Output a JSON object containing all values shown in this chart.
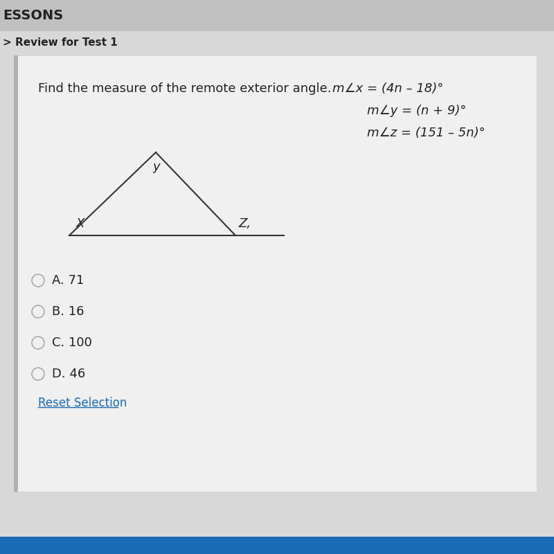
{
  "bg_color": "#d8d8d8",
  "panel_color": "#e8e8e8",
  "header_bg": "#c8c8c8",
  "header_text": "ESSONS",
  "breadcrumb": "> Review for Test 1",
  "question_text": "Find the measure of the remote exterior angle.",
  "eq1": "m∠x = (4n – 18)°",
  "eq2": "m∠y = (n + 9)°",
  "eq3": "m∠z = (151 – 5n)°",
  "triangle_label_x": "X",
  "triangle_label_y": "y",
  "triangle_label_z": "Z,",
  "choices": [
    "A. 71",
    "B. 16",
    "C. 100",
    "D. 46"
  ],
  "reset_text": "Reset Selection",
  "reset_color": "#1a6bb5",
  "text_color": "#222222",
  "choice_circle_color": "#aaaaaa"
}
